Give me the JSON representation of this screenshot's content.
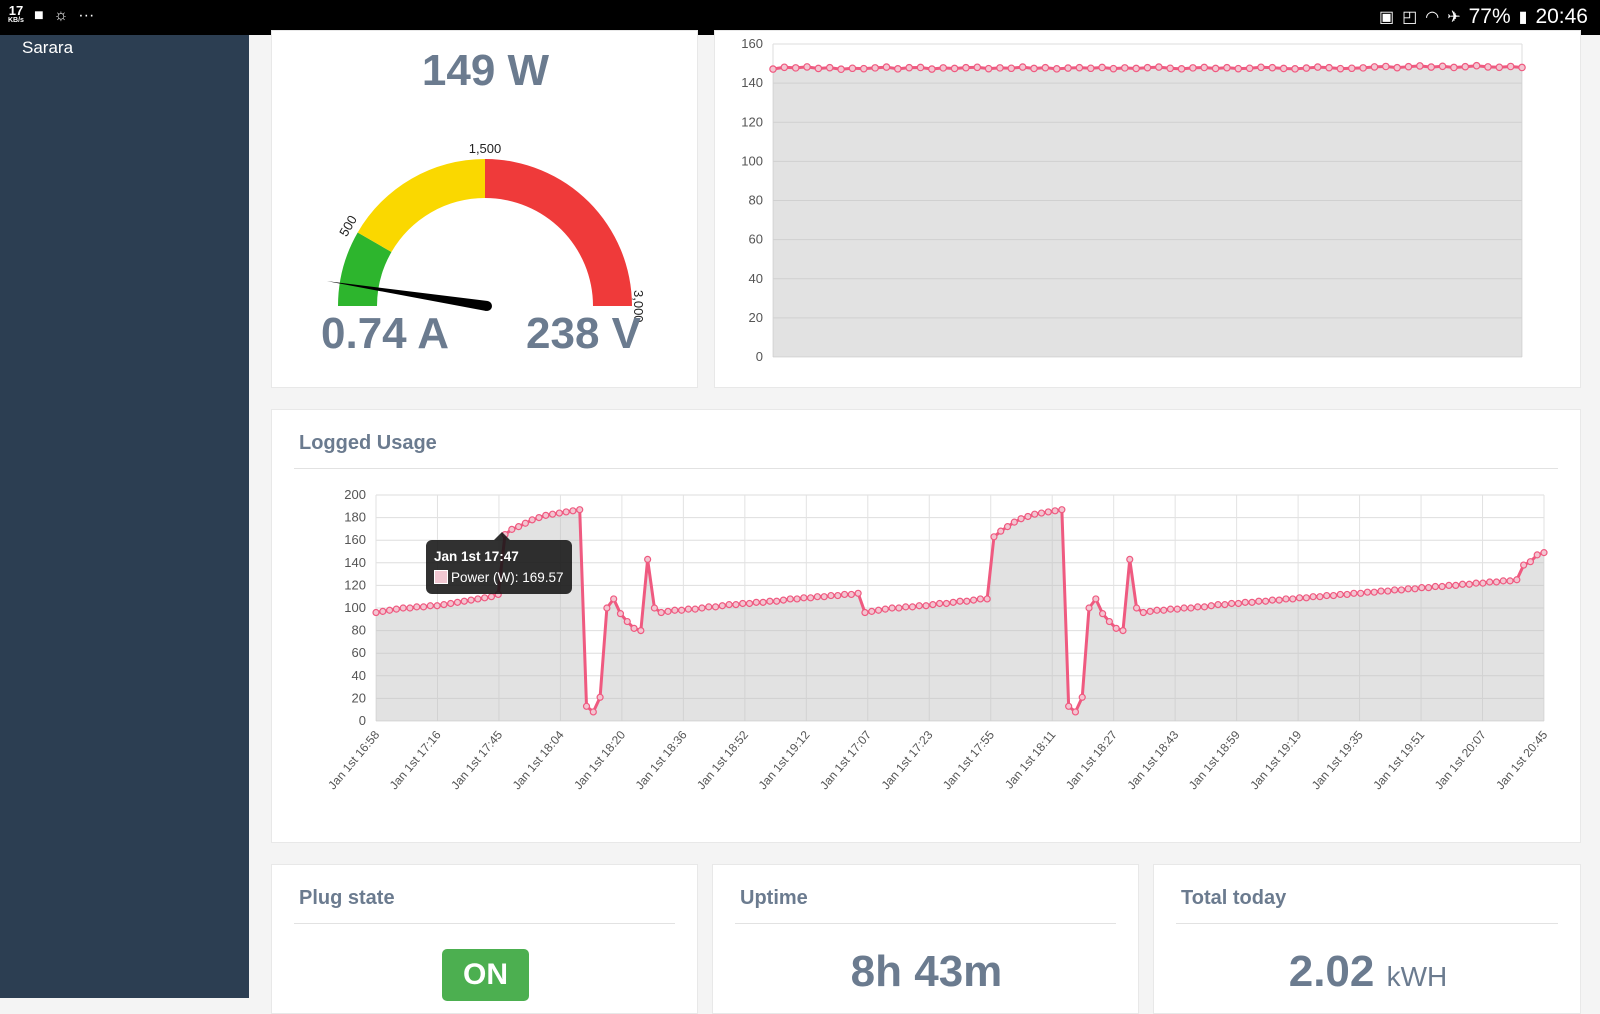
{
  "status_bar": {
    "kbs_value": "17",
    "kbs_unit": "KB/s",
    "more": "···",
    "battery": "77%",
    "time": "20:46"
  },
  "sidebar": {
    "user_name": "Sarara"
  },
  "gauge_card": {
    "power": "149 W",
    "current": "0.74 A",
    "voltage": "238 V",
    "gauge_labels": [
      "500",
      "1,500",
      "3,000"
    ],
    "gauge_value": 149,
    "gauge_max": 3000,
    "colors": {
      "green": "#2db52d",
      "yellow": "#fad800",
      "red": "#ef3a3a"
    }
  },
  "top_chart": {
    "y_ticks": [
      "0",
      "20",
      "40",
      "60",
      "80",
      "100",
      "120",
      "140",
      "160"
    ]
  },
  "logged_usage": {
    "title": "Logged Usage",
    "tooltip_title": "Jan 1st 17:47",
    "tooltip_text": "Power (W): 169.57",
    "y_ticks": [
      "0",
      "20",
      "40",
      "60",
      "80",
      "100",
      "120",
      "140",
      "160",
      "180",
      "200"
    ]
  },
  "plug_state": {
    "title": "Plug state",
    "state": "ON"
  },
  "uptime": {
    "title": "Uptime",
    "value": "8h 43m"
  },
  "total_today": {
    "title": "Total today",
    "value": "2.02",
    "unit": "kWH"
  },
  "chart_data": [
    {
      "type": "line",
      "series": [
        {
          "name": "",
          "values": [
            147.2,
            148.1,
            147.8,
            148.3,
            147.5,
            147.9,
            147.1,
            147.6,
            147.4,
            147.8,
            148.2,
            147.3,
            147.9,
            148.0,
            147.2,
            147.8,
            147.5,
            147.9,
            148.1,
            147.4,
            147.8,
            147.6,
            148.2,
            147.5,
            147.9,
            147.3,
            147.7,
            147.9,
            147.6,
            148.0,
            147.4,
            147.8,
            147.5,
            147.9,
            148.2,
            147.6,
            147.3,
            147.8,
            148.0,
            147.5,
            147.9,
            147.4,
            147.6,
            148.1,
            147.9,
            147.5,
            147.3,
            147.7,
            148.2,
            147.9,
            147.4,
            147.6,
            147.8,
            148.3,
            148.5,
            147.9,
            148.4,
            148.8,
            148.2,
            148.6,
            148.0,
            148.4,
            148.9,
            148.3,
            148.1,
            148.5,
            148.0
          ]
        }
      ],
      "ylim": [
        0,
        160
      ],
      "y_ticks": [
        0,
        20,
        40,
        60,
        80,
        100,
        120,
        140,
        160
      ],
      "grid": true,
      "fill": true
    },
    {
      "type": "line",
      "title": "Logged Usage",
      "series": [
        {
          "name": "Power (W)",
          "values": [
            96,
            97,
            98,
            99,
            100,
            100,
            101,
            101,
            102,
            102,
            103,
            104,
            105,
            106,
            107,
            108,
            109,
            110,
            112,
            165,
            169.57,
            172,
            175,
            178,
            180,
            182,
            183,
            184,
            185,
            186,
            187,
            13,
            8,
            21,
            100,
            108,
            95,
            88,
            82,
            80,
            143,
            100,
            96,
            97,
            98,
            98,
            99,
            99,
            100,
            101,
            101,
            102,
            103,
            103,
            104,
            104,
            105,
            105,
            106,
            106,
            107,
            108,
            108,
            109,
            109,
            110,
            110,
            111,
            111,
            112,
            112,
            113,
            96,
            97,
            98,
            99,
            100,
            100,
            101,
            101,
            102,
            102,
            103,
            104,
            104,
            105,
            106,
            106,
            107,
            108,
            108,
            163,
            168,
            172,
            176,
            179,
            181,
            183,
            184,
            185,
            186,
            187,
            13,
            8,
            21,
            100,
            108,
            95,
            88,
            82,
            80,
            143,
            100,
            96,
            97,
            98,
            98,
            99,
            99,
            100,
            100,
            101,
            101,
            102,
            103,
            103,
            104,
            104,
            105,
            105,
            106,
            106,
            107,
            107,
            108,
            108,
            109,
            109,
            110,
            110,
            111,
            111,
            112,
            112,
            113,
            113,
            114,
            114,
            115,
            115,
            116,
            116,
            117,
            117,
            118,
            118,
            119,
            119,
            120,
            120,
            121,
            121,
            122,
            122,
            123,
            123,
            124,
            124,
            125,
            138,
            141,
            147,
            149
          ]
        }
      ],
      "x_ticks": [
        "Jan 1st 16:58",
        "Jan 1st 17:16",
        "Jan 1st 17:45",
        "Jan 1st 18:04",
        "Jan 1st 18:20",
        "Jan 1st 18:36",
        "Jan 1st 18:52",
        "Jan 1st 19:12",
        "Jan 1st 17:07",
        "Jan 1st 17:23",
        "Jan 1st 17:55",
        "Jan 1st 18:11",
        "Jan 1st 18:27",
        "Jan 1st 18:43",
        "Jan 1st 18:59",
        "Jan 1st 19:19",
        "Jan 1st 19:35",
        "Jan 1st 19:51",
        "Jan 1st 20:07",
        "Jan 1st 20:45"
      ],
      "ylim": [
        0,
        200
      ],
      "y_ticks": [
        0,
        20,
        40,
        60,
        80,
        100,
        120,
        140,
        160,
        180,
        200
      ],
      "grid": true,
      "fill": true
    }
  ]
}
